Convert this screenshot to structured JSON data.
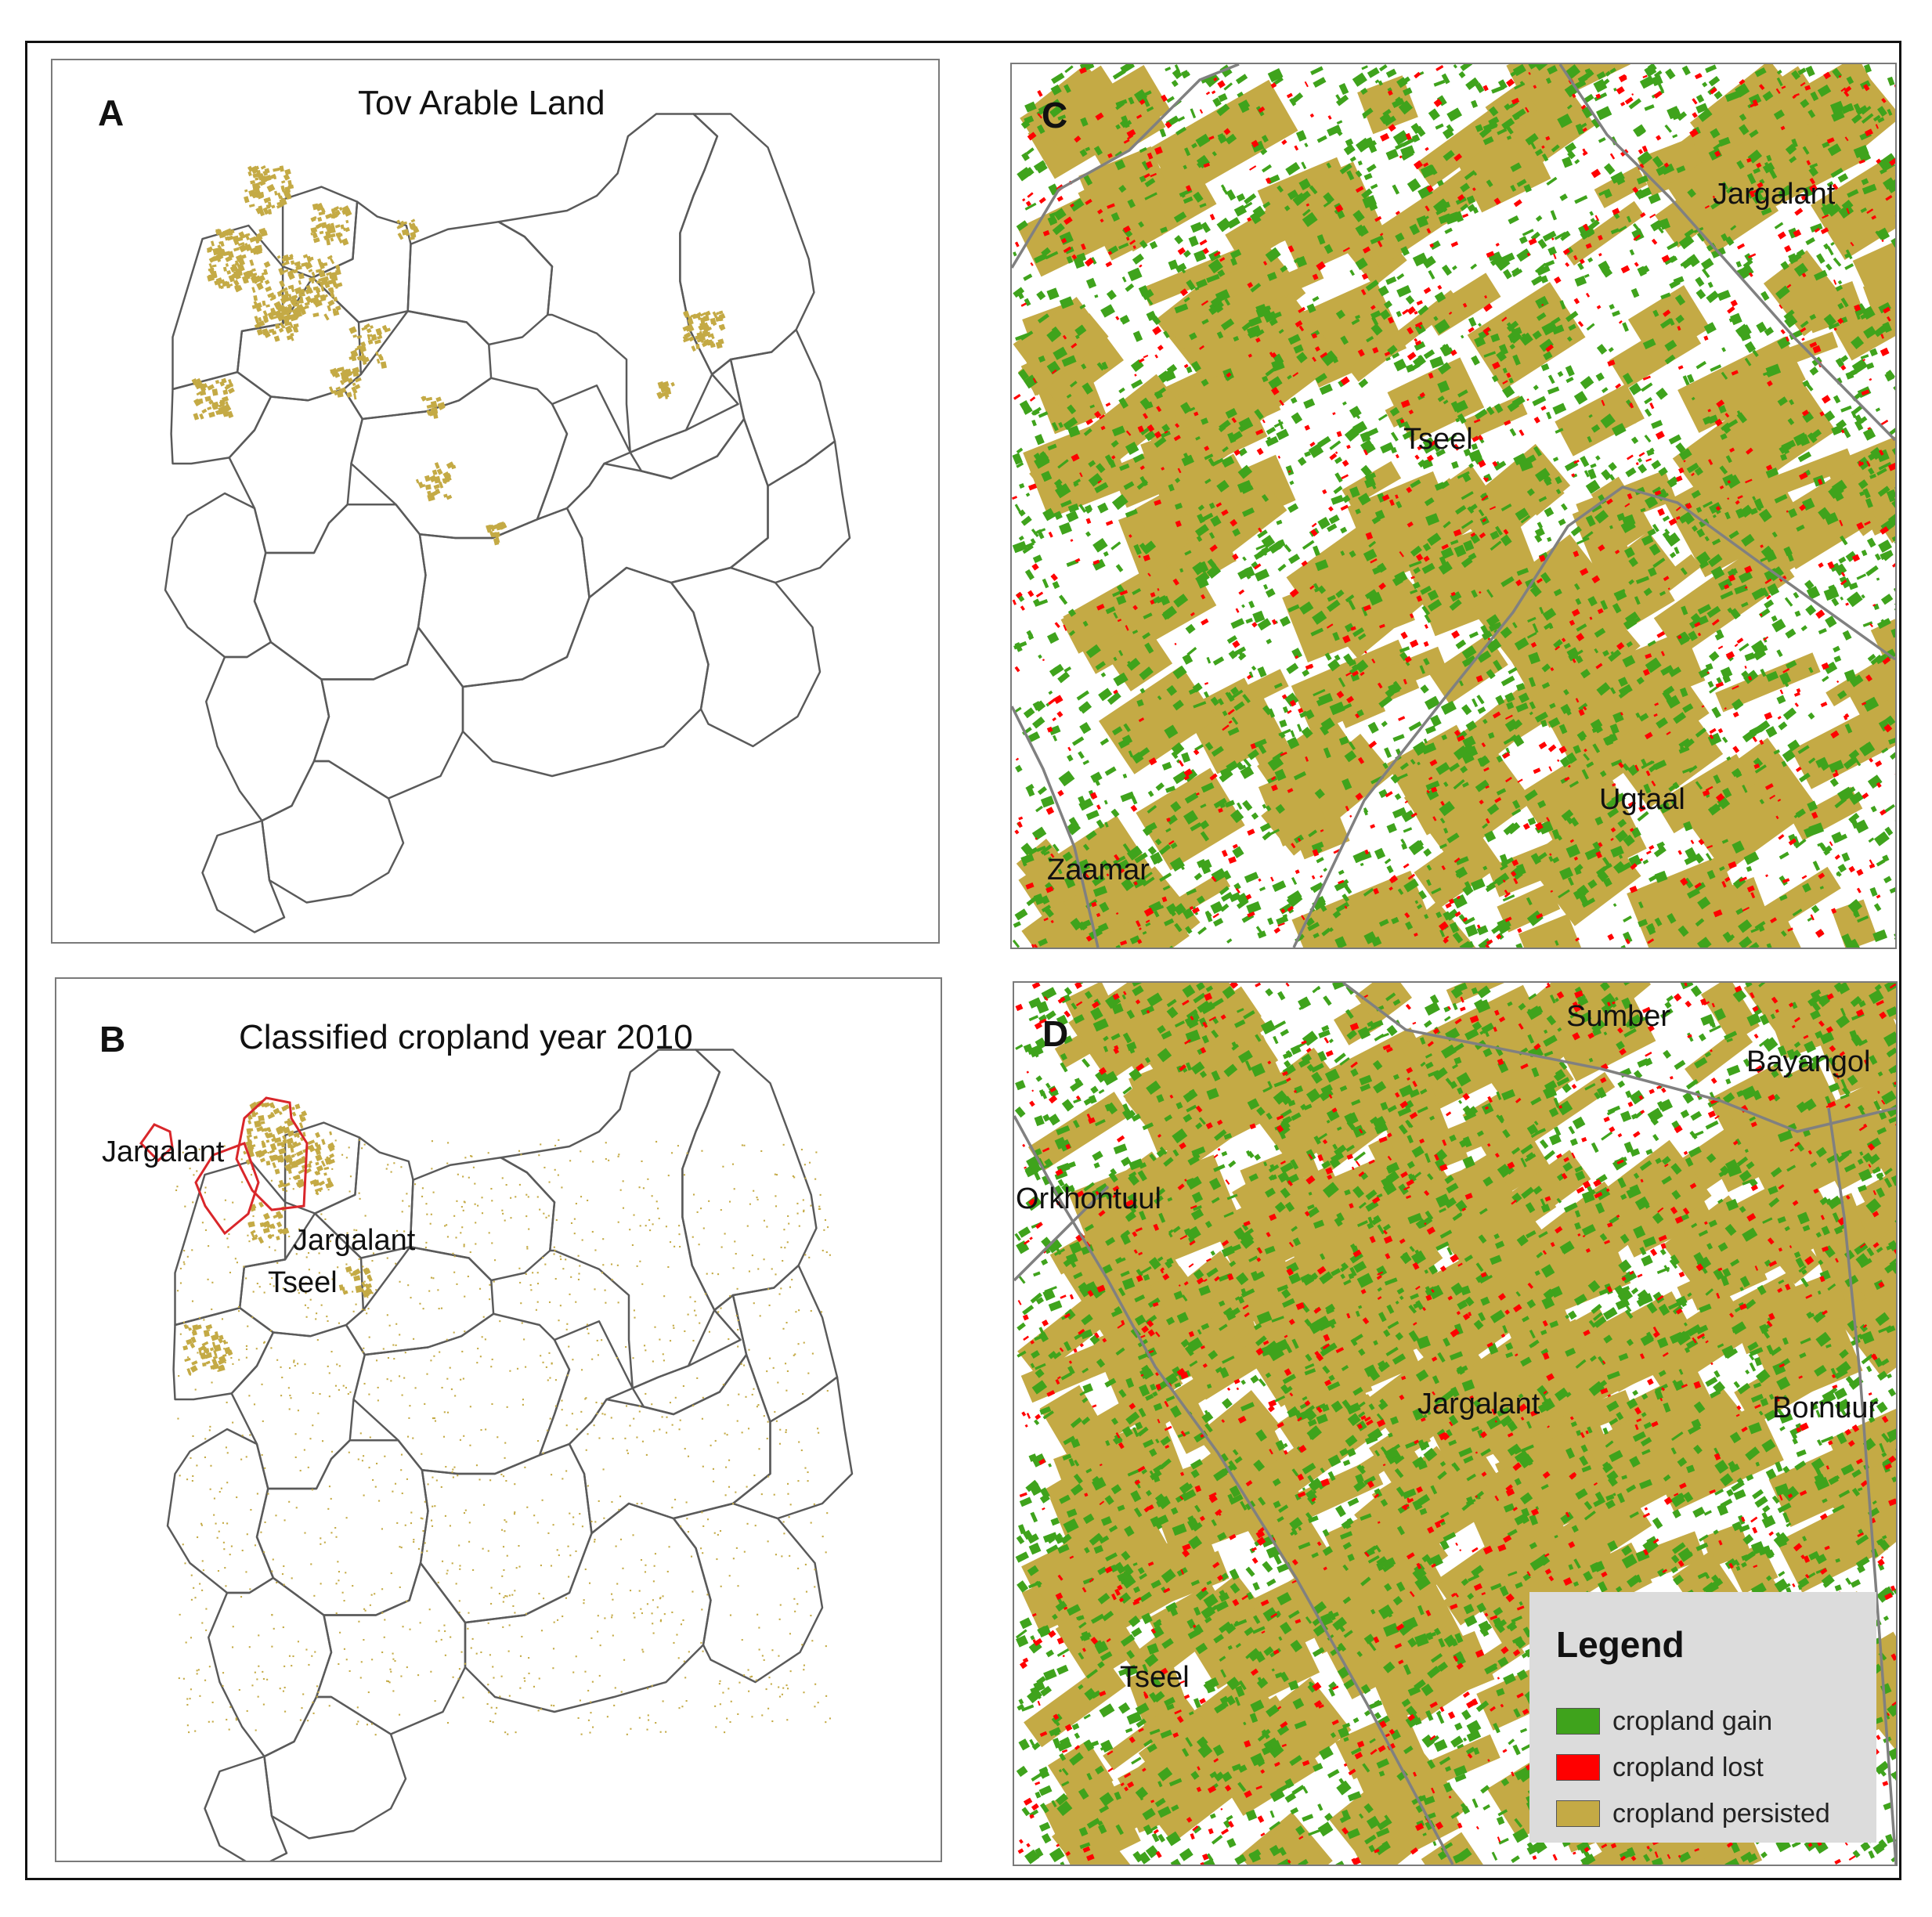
{
  "panels": {
    "a": {
      "letter": "A",
      "title": "Tov Arable Land"
    },
    "b": {
      "letter": "B",
      "title": "Classified cropland year 2010",
      "places": [
        "Jargalant",
        "Jargalant",
        "Tseel"
      ]
    },
    "c": {
      "letter": "C",
      "places": [
        "Jargalant",
        "Tseel",
        "Ugtaal",
        "Zaamar"
      ]
    },
    "d": {
      "letter": "D",
      "places": [
        "Sumber",
        "Bayangol",
        "Orkhontuul",
        "Jargalant",
        "Bornuur",
        "Tseel"
      ]
    }
  },
  "legend": {
    "title": "Legend",
    "items": [
      {
        "label": "cropland gain",
        "color": "#3fa31c"
      },
      {
        "label": "cropland lost",
        "color": "#ff0000"
      },
      {
        "label": "cropland persisted",
        "color": "#c4aa45"
      }
    ]
  },
  "colors": {
    "gain": "#3fa31c",
    "lost": "#ff0000",
    "persisted": "#c4aa45",
    "boundary": "#555555",
    "highlight": "#d9262a"
  }
}
